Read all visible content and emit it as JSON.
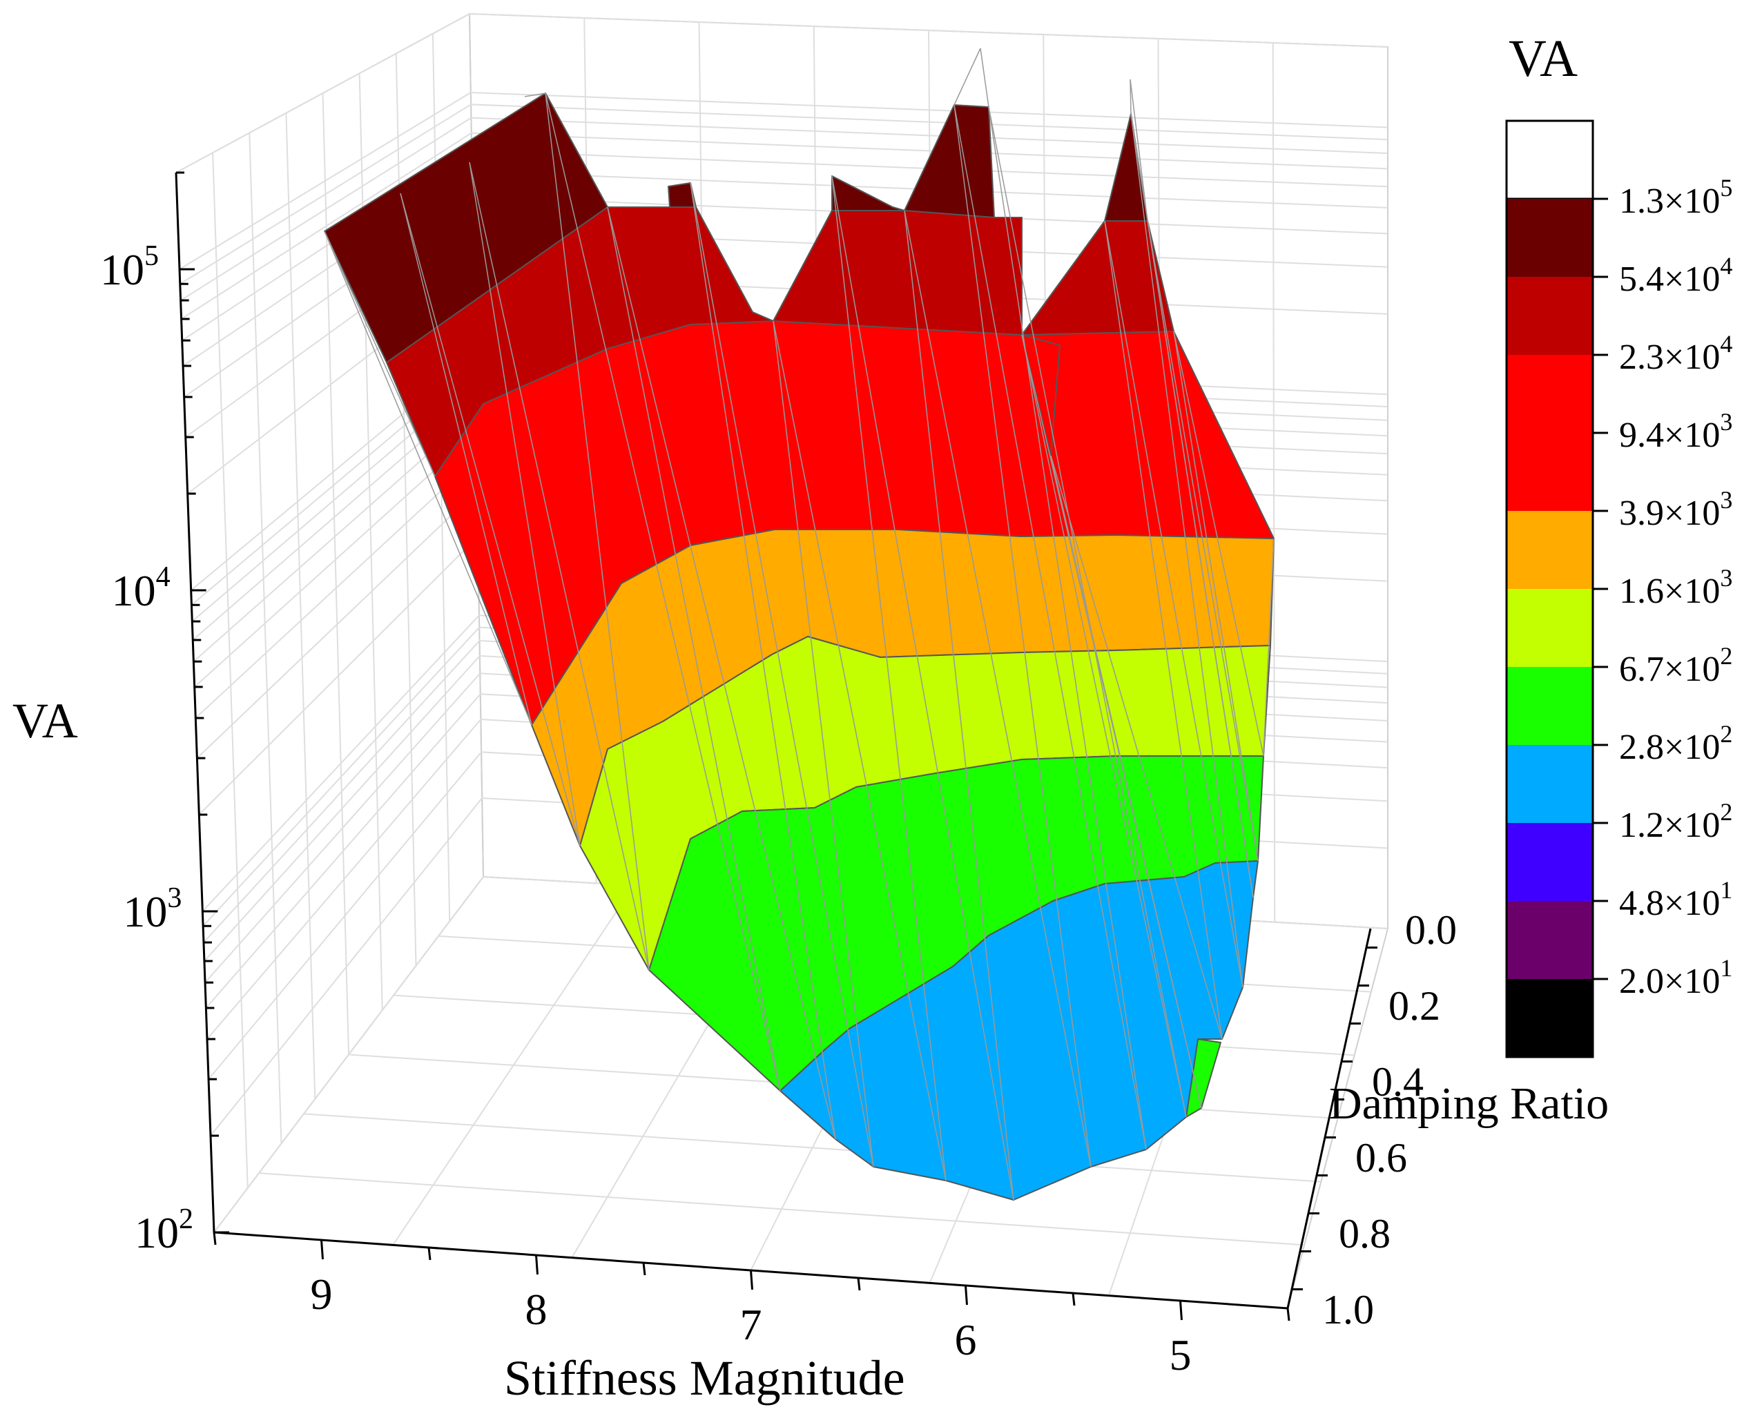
{
  "chart_data": {
    "type": "surface3d",
    "title": "",
    "zlabel": "VA",
    "xlabel": "Stiffness Magnitude",
    "ylabel": "Damping Ratio",
    "z_scale": "log",
    "zlim": [
      100,
      200000
    ],
    "xlim": [
      4.5,
      9.5
    ],
    "ylim": [
      0.0,
      1.0
    ],
    "z_ticks": [
      {
        "value": 100,
        "base": "10",
        "exp": "2"
      },
      {
        "value": 1000,
        "base": "10",
        "exp": "3"
      },
      {
        "value": 10000,
        "base": "10",
        "exp": "4"
      },
      {
        "value": 100000,
        "base": "10",
        "exp": "5"
      }
    ],
    "x_ticks": [
      "9",
      "8",
      "7",
      "6",
      "5"
    ],
    "y_ticks": [
      "0.0",
      "0.2",
      "0.4",
      "0.6",
      "0.8",
      "1.0"
    ],
    "colorbar": {
      "title": "VA",
      "levels": [
        {
          "mant": "1.3",
          "exp": "5",
          "color": "#6b0000"
        },
        {
          "mant": "5.4",
          "exp": "4",
          "color": "#bf0000"
        },
        {
          "mant": "2.3",
          "exp": "4",
          "color": "#ff0000"
        },
        {
          "mant": "9.4",
          "exp": "3",
          "color": "#ff0000"
        },
        {
          "mant": "3.9",
          "exp": "3",
          "color": "#ffab00"
        },
        {
          "mant": "1.6",
          "exp": "3",
          "color": "#c3ff00"
        },
        {
          "mant": "6.7",
          "exp": "2",
          "color": "#19ff00"
        },
        {
          "mant": "2.8",
          "exp": "2",
          "color": "#00aaff"
        },
        {
          "mant": "1.2",
          "exp": "2",
          "color": "#4000ff"
        },
        {
          "mant": "4.8",
          "exp": "1",
          "color": "#6b006b"
        },
        {
          "mant": "2.0",
          "exp": "1",
          "color": "#000000"
        }
      ],
      "top_color": "#ffffff"
    },
    "surface_bands": [
      {
        "label": "above 5.4×10^4",
        "color": "#6b0000"
      },
      {
        "label": "2.3×10^4 – 5.4×10^4",
        "color": "#bf0000"
      },
      {
        "label": "3.9×10^3 – 2.3×10^4",
        "color": "#ff0000"
      },
      {
        "label": "1.6×10^3 – 3.9×10^3",
        "color": "#ffab00"
      },
      {
        "label": "6.7×10^2 – 1.6×10^3",
        "color": "#c3ff00"
      },
      {
        "label": "2.8×10^2 – 6.7×10^2",
        "color": "#19ff00"
      },
      {
        "label": "1.2×10^2 – 2.8×10^2",
        "color": "#00aaff"
      }
    ]
  }
}
